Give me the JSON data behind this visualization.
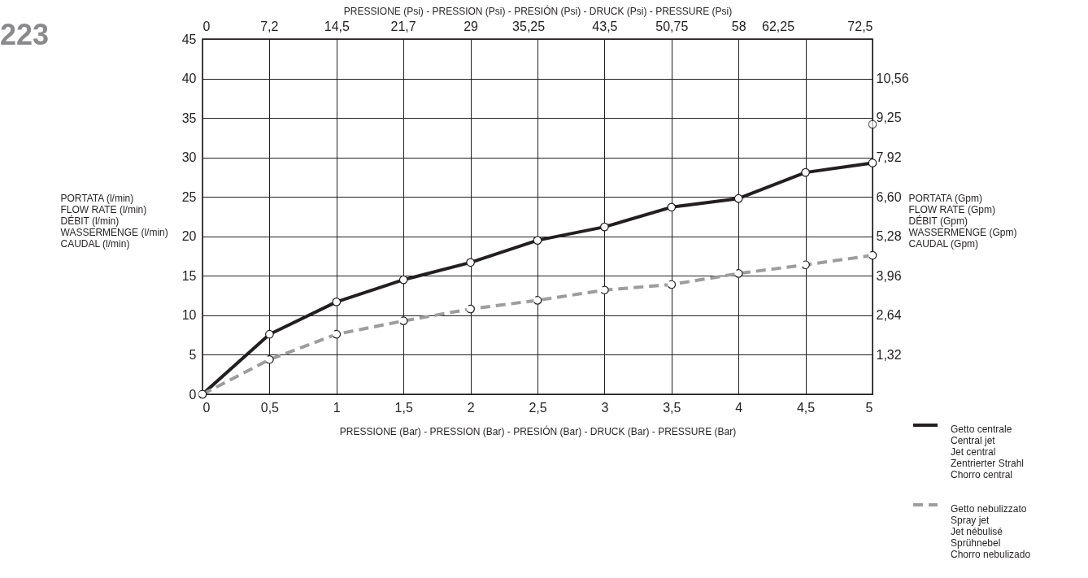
{
  "chart_data": {
    "type": "line",
    "annotations": [
      "223"
    ],
    "x2label": "PRESSIONE (Psi) - PRESSION (Psi) - PRESIÓN (Psi) - DRUCK (Psi) - PRESSURE (Psi)",
    "xlabel": "PRESSIONE (Bar) - PRESSION (Bar) - PRESIÓN (Bar) - DRUCK (Bar) - PRESSURE (Bar)",
    "ylabel": "PORTATA (l/min)\nFLOW RATE (l/min)\nDÉBIT (l/min)\nWASSERMENGE (l/min)\nCAUDAL (l/min)",
    "y2label": "PORTATA (Gpm)\nFLOW RATE (Gpm)\nDÉBIT (Gpm)\nWASSERMENGE (Gpm)\nCAUDAL (Gpm)",
    "x": [
      0,
      0.5,
      1,
      1.5,
      2,
      2.5,
      3,
      3.5,
      4,
      4.5,
      5
    ],
    "xlim": [
      0,
      5
    ],
    "xticks": [
      0,
      {
        "value": 0.5,
        "label": "0,5"
      },
      1,
      {
        "value": 1.5,
        "label": "1,5"
      },
      2,
      {
        "value": 2.5,
        "label": "2,5"
      },
      3,
      {
        "value": 3.5,
        "label": "3,5"
      },
      4,
      {
        "value": 4.5,
        "label": "4,5"
      },
      5
    ],
    "x2lim": [
      0,
      72.5
    ],
    "x2ticks": [
      0,
      {
        "value": 7.2,
        "label": "7,2"
      },
      {
        "value": 14.5,
        "label": "14,5"
      },
      {
        "value": 21.7,
        "label": "21,7"
      },
      29,
      {
        "value": 35.25,
        "label": "35,25"
      },
      {
        "value": 43.5,
        "label": "43,5"
      },
      {
        "value": 50.75,
        "label": "50,75"
      },
      58,
      {
        "value": 62.25,
        "label": "62,25"
      },
      {
        "value": 72.5,
        "label": "72,5"
      }
    ],
    "ylim": [
      0,
      45
    ],
    "yticks": [
      0,
      5,
      10,
      15,
      20,
      25,
      30,
      35,
      40,
      45
    ],
    "y2lim": [
      0,
      11.88
    ],
    "y2ticks": [
      {
        "value": 1.32,
        "label": "1,32"
      },
      {
        "value": 2.64,
        "label": "2,64"
      },
      {
        "value": 3.96,
        "label": "3,96"
      },
      {
        "value": 5.28,
        "label": "5,28"
      },
      {
        "value": 6.6,
        "label": "6,60"
      },
      {
        "value": 7.92,
        "label": "7,92"
      },
      {
        "value": 9.25,
        "label": "9,25"
      },
      {
        "value": 10.56,
        "label": "10,56"
      }
    ],
    "grid": true,
    "legend": "bottom right",
    "marker": "circle",
    "series": [
      {
        "name": "Getto centrale\nCentral jet\nJet central\nZentrierter Strahl\nChorro central",
        "color": "#231f20",
        "line_style": "solid",
        "values": [
          0,
          7.6,
          11.7,
          14.5,
          16.7,
          19.5,
          21.2,
          23.7,
          24.8,
          28.1,
          29.3
        ]
      },
      {
        "name": "Getto nebulizzato\nSpray jet\nJet nébulisé\nSprühnebel\nChorro nebulizado",
        "color": "#9d9d9f",
        "line_style": "dashed",
        "values": [
          0,
          4.4,
          7.6,
          9.3,
          10.8,
          11.9,
          13.2,
          13.9,
          15.3,
          16.4,
          17.6
        ]
      },
      {
        "type": "scatter",
        "color": "#231f20",
        "x": [
          5
        ],
        "values": [
          34.2
        ]
      }
    ]
  }
}
